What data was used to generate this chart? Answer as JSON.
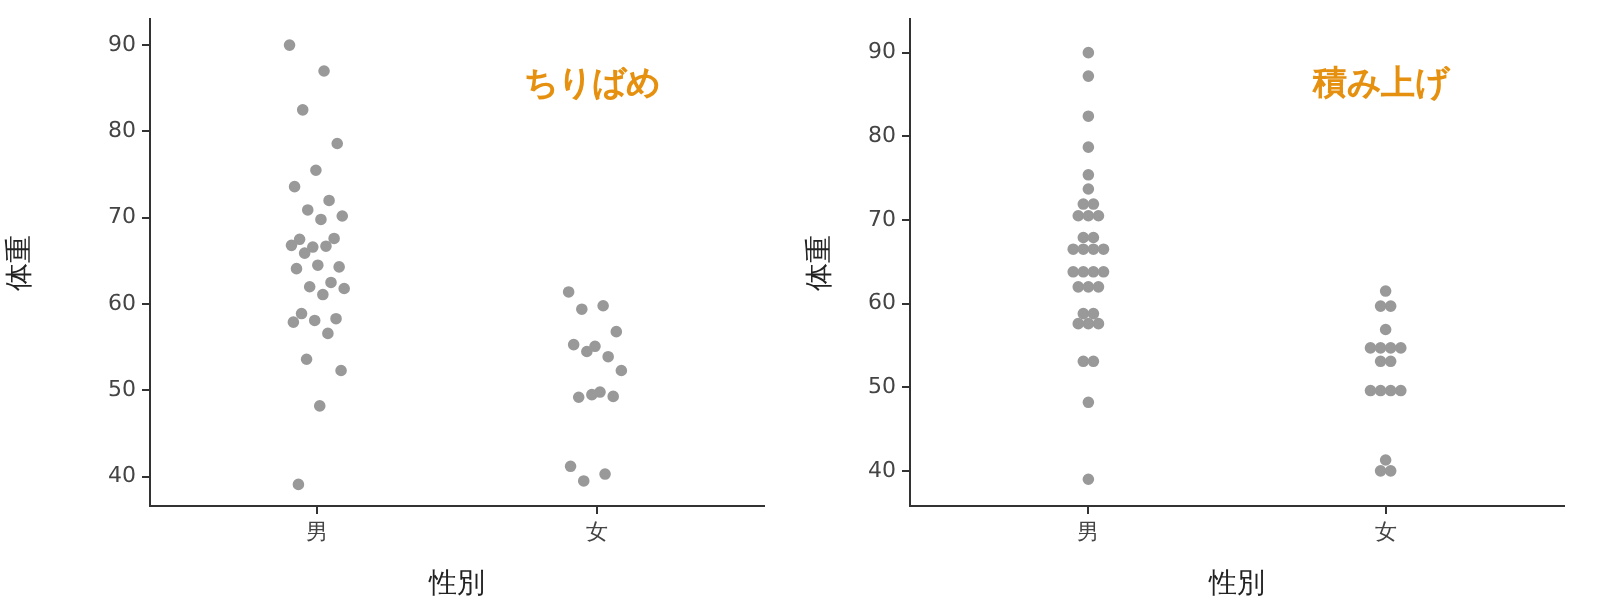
{
  "chart_data": [
    {
      "type": "scatter",
      "xlabel": "性別",
      "ylabel": "体重",
      "annotations": [
        "ちりばめ"
      ],
      "categories": [
        "男",
        "女"
      ],
      "ylim": [
        36.6,
        93
      ],
      "yticks": [
        40,
        50,
        60,
        70,
        80,
        90
      ],
      "grid": false,
      "marker": "circle",
      "series": [
        {
          "color": "#999999",
          "x": [
            "男",
            "男",
            "男",
            "男",
            "男",
            "男",
            "男",
            "男",
            "男",
            "男",
            "男",
            "男",
            "男",
            "男",
            "男",
            "男",
            "男",
            "男",
            "男",
            "男",
            "男",
            "男",
            "男",
            "男",
            "男",
            "男",
            "男",
            "男",
            "男",
            "男",
            "男",
            "男"
          ],
          "values": [
            90,
            87,
            82.5,
            78.6,
            75.5,
            73.6,
            72,
            70.9,
            70.2,
            69.8,
            67.5,
            67.6,
            66.6,
            66.8,
            66.7,
            65.9,
            64.3,
            64.5,
            64.1,
            62.5,
            62,
            61.8,
            61.1,
            58.9,
            58.3,
            58.1,
            57.9,
            56.6,
            53.6,
            52.3,
            48.2,
            39.1
          ]
        },
        {
          "color": "#999999",
          "x": [
            "女",
            "女",
            "女",
            "女",
            "女",
            "女",
            "女",
            "女",
            "女",
            "女",
            "女",
            "女",
            "女",
            "女",
            "女",
            "女"
          ],
          "values": [
            61.4,
            59.8,
            59.4,
            56.8,
            55.1,
            55.3,
            53.9,
            54.5,
            52.3,
            49.8,
            49.2,
            49.3,
            49.5,
            41.2,
            40.3,
            39.5
          ]
        }
      ]
    },
    {
      "type": "scatter",
      "xlabel": "性別",
      "ylabel": "体重",
      "annotations": [
        "積み上げ"
      ],
      "categories": [
        "男",
        "女"
      ],
      "ylim": [
        35.8,
        94
      ],
      "yticks": [
        40,
        50,
        60,
        70,
        80,
        90
      ],
      "grid": false,
      "marker": "circle",
      "series": [
        {
          "color": "#999999",
          "x": [
            "男",
            "男",
            "男",
            "男",
            "男",
            "男",
            "男",
            "男",
            "男",
            "男",
            "男",
            "男",
            "男",
            "男",
            "男",
            "男",
            "男",
            "男",
            "男",
            "男",
            "男",
            "男",
            "男",
            "男",
            "男",
            "男",
            "男",
            "男",
            "男",
            "男",
            "男",
            "男",
            "男"
          ],
          "values": [
            90,
            87.2,
            82.4,
            78.7,
            75.4,
            73.7,
            71.9,
            71.9,
            70.5,
            70.5,
            70.5,
            67.9,
            67.9,
            66.5,
            66.5,
            66.5,
            66.5,
            63.8,
            63.8,
            63.8,
            63.8,
            62,
            62,
            62,
            58.8,
            58.8,
            57.6,
            57.6,
            57.6,
            53.1,
            53.1,
            48.2,
            39
          ]
        },
        {
          "color": "#999999",
          "x": [
            "女",
            "女",
            "女",
            "女",
            "女",
            "女",
            "女",
            "女",
            "女",
            "女",
            "女",
            "女",
            "女",
            "女",
            "女",
            "女",
            "女"
          ],
          "values": [
            61.5,
            59.7,
            59.7,
            56.9,
            54.7,
            54.7,
            54.7,
            54.7,
            53.1,
            53.1,
            49.6,
            49.6,
            49.6,
            49.6,
            41.3,
            40,
            40
          ]
        }
      ]
    }
  ]
}
